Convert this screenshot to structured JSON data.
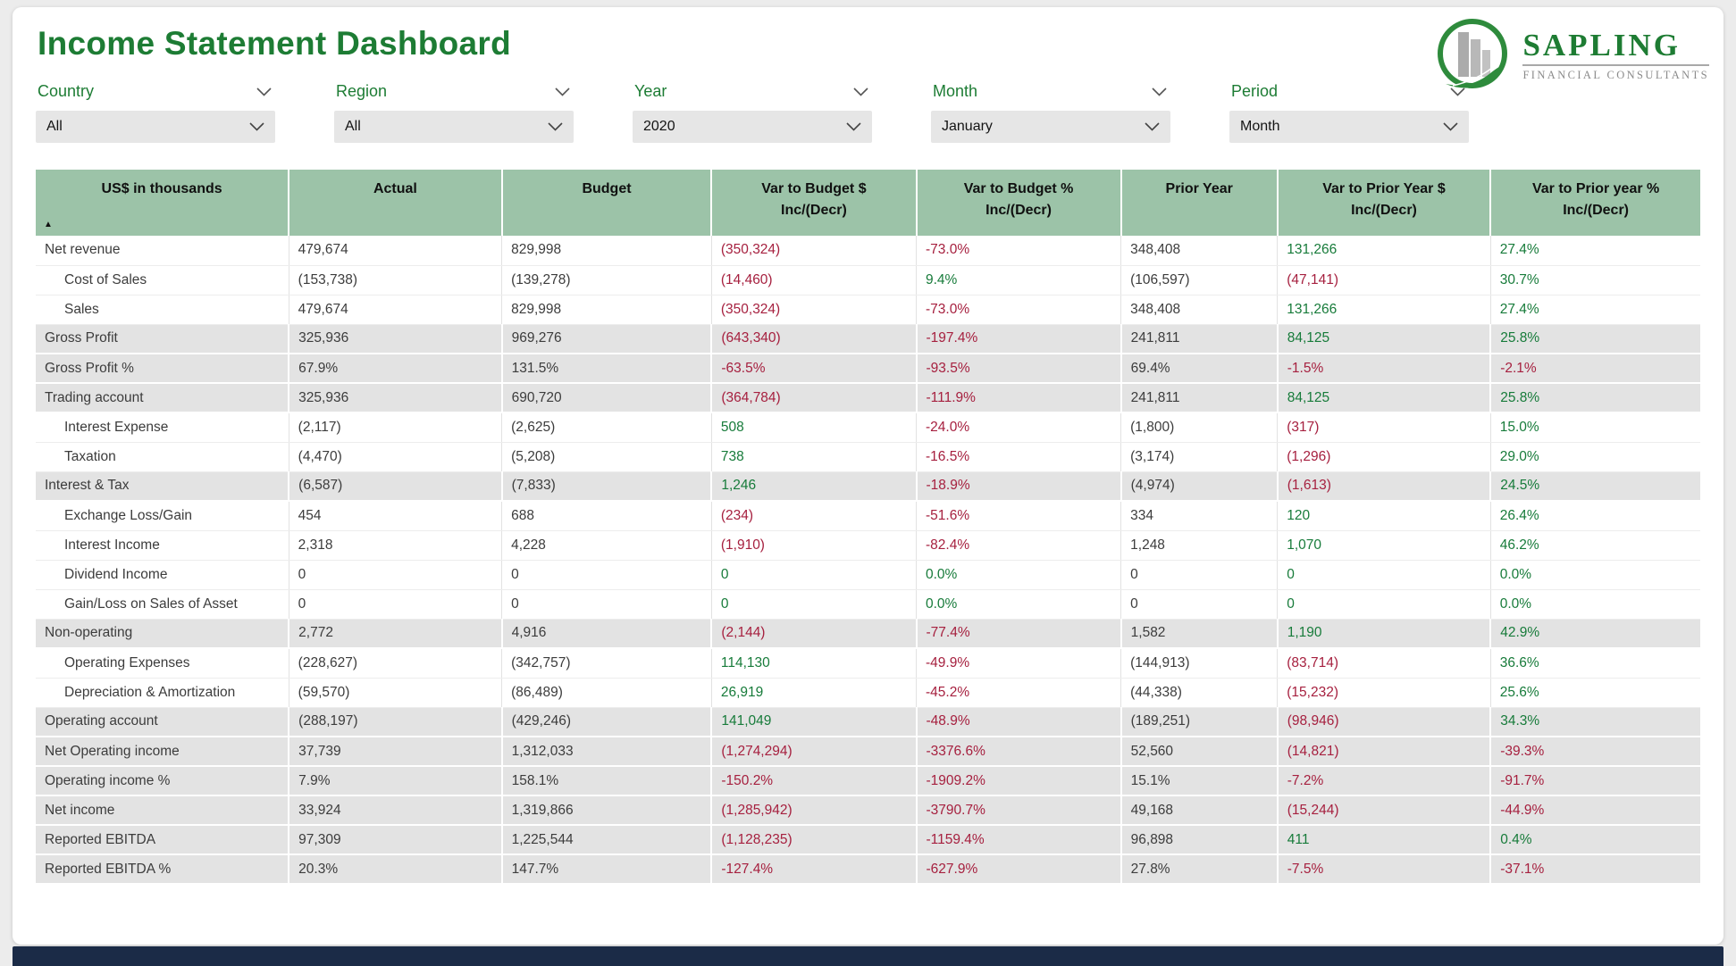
{
  "title": "Income Statement Dashboard",
  "logo": {
    "name": "SAPLING",
    "subtitle": "FINANCIAL CONSULTANTS"
  },
  "filters": [
    {
      "label": "Country",
      "value": "All"
    },
    {
      "label": "Region",
      "value": "All"
    },
    {
      "label": "Year",
      "value": "2020"
    },
    {
      "label": "Month",
      "value": "January"
    },
    {
      "label": "Period",
      "value": "Month"
    }
  ],
  "colors": {
    "accent_green": "#1d7c34",
    "header_bg": "#9cc3a8",
    "positive": "#177b3a",
    "negative": "#a6203f",
    "band_row_bg": "#e3e3e3",
    "bottom_bar": "#1b2b47"
  },
  "table": {
    "sort_icon": "ascending-triangle",
    "columns": [
      [
        "US$ in thousands"
      ],
      [
        "Actual"
      ],
      [
        "Budget"
      ],
      [
        "Var to Budget $",
        "Inc/(Decr)"
      ],
      [
        "Var to Budget %",
        "Inc/(Decr)"
      ],
      [
        "Prior Year"
      ],
      [
        "Var to Prior Year $",
        "Inc/(Decr)"
      ],
      [
        "Var to Prior year %",
        "Inc/(Decr)"
      ]
    ],
    "rows": [
      {
        "label": "Net revenue",
        "indent": false,
        "band": false,
        "cells": [
          [
            "479,674",
            "d"
          ],
          [
            "829,998",
            "d"
          ],
          [
            "(350,324)",
            "n"
          ],
          [
            "-73.0%",
            "n"
          ],
          [
            "348,408",
            "d"
          ],
          [
            "131,266",
            "p"
          ],
          [
            "27.4%",
            "p"
          ]
        ]
      },
      {
        "label": "Cost of Sales",
        "indent": true,
        "band": false,
        "cells": [
          [
            "(153,738)",
            "d"
          ],
          [
            "(139,278)",
            "d"
          ],
          [
            "(14,460)",
            "n"
          ],
          [
            "9.4%",
            "p"
          ],
          [
            "(106,597)",
            "d"
          ],
          [
            "(47,141)",
            "n"
          ],
          [
            "30.7%",
            "p"
          ]
        ]
      },
      {
        "label": "Sales",
        "indent": true,
        "band": false,
        "cells": [
          [
            "479,674",
            "d"
          ],
          [
            "829,998",
            "d"
          ],
          [
            "(350,324)",
            "n"
          ],
          [
            "-73.0%",
            "n"
          ],
          [
            "348,408",
            "d"
          ],
          [
            "131,266",
            "p"
          ],
          [
            "27.4%",
            "p"
          ]
        ]
      },
      {
        "label": "Gross Profit",
        "indent": false,
        "band": true,
        "cells": [
          [
            "325,936",
            "d"
          ],
          [
            "969,276",
            "d"
          ],
          [
            "(643,340)",
            "n"
          ],
          [
            "-197.4%",
            "n"
          ],
          [
            "241,811",
            "d"
          ],
          [
            "84,125",
            "p"
          ],
          [
            "25.8%",
            "p"
          ]
        ]
      },
      {
        "label": "Gross Profit %",
        "indent": false,
        "band": true,
        "cells": [
          [
            "67.9%",
            "d"
          ],
          [
            "131.5%",
            "d"
          ],
          [
            "-63.5%",
            "n"
          ],
          [
            "-93.5%",
            "n"
          ],
          [
            "69.4%",
            "d"
          ],
          [
            "-1.5%",
            "n"
          ],
          [
            "-2.1%",
            "n"
          ]
        ]
      },
      {
        "label": "Trading account",
        "indent": false,
        "band": true,
        "cells": [
          [
            "325,936",
            "d"
          ],
          [
            "690,720",
            "d"
          ],
          [
            "(364,784)",
            "n"
          ],
          [
            "-111.9%",
            "n"
          ],
          [
            "241,811",
            "d"
          ],
          [
            "84,125",
            "p"
          ],
          [
            "25.8%",
            "p"
          ]
        ]
      },
      {
        "label": "Interest Expense",
        "indent": true,
        "band": false,
        "cells": [
          [
            "(2,117)",
            "d"
          ],
          [
            "(2,625)",
            "d"
          ],
          [
            "508",
            "p"
          ],
          [
            "-24.0%",
            "n"
          ],
          [
            "(1,800)",
            "d"
          ],
          [
            "(317)",
            "n"
          ],
          [
            "15.0%",
            "p"
          ]
        ]
      },
      {
        "label": "Taxation",
        "indent": true,
        "band": false,
        "cells": [
          [
            "(4,470)",
            "d"
          ],
          [
            "(5,208)",
            "d"
          ],
          [
            "738",
            "p"
          ],
          [
            "-16.5%",
            "n"
          ],
          [
            "(3,174)",
            "d"
          ],
          [
            "(1,296)",
            "n"
          ],
          [
            "29.0%",
            "p"
          ]
        ]
      },
      {
        "label": "Interest & Tax",
        "indent": false,
        "band": true,
        "cells": [
          [
            "(6,587)",
            "d"
          ],
          [
            "(7,833)",
            "d"
          ],
          [
            "1,246",
            "p"
          ],
          [
            "-18.9%",
            "n"
          ],
          [
            "(4,974)",
            "d"
          ],
          [
            "(1,613)",
            "n"
          ],
          [
            "24.5%",
            "p"
          ]
        ]
      },
      {
        "label": "Exchange Loss/Gain",
        "indent": true,
        "band": false,
        "cells": [
          [
            "454",
            "d"
          ],
          [
            "688",
            "d"
          ],
          [
            "(234)",
            "n"
          ],
          [
            "-51.6%",
            "n"
          ],
          [
            "334",
            "d"
          ],
          [
            "120",
            "p"
          ],
          [
            "26.4%",
            "p"
          ]
        ]
      },
      {
        "label": "Interest Income",
        "indent": true,
        "band": false,
        "cells": [
          [
            "2,318",
            "d"
          ],
          [
            "4,228",
            "d"
          ],
          [
            "(1,910)",
            "n"
          ],
          [
            "-82.4%",
            "n"
          ],
          [
            "1,248",
            "d"
          ],
          [
            "1,070",
            "p"
          ],
          [
            "46.2%",
            "p"
          ]
        ]
      },
      {
        "label": "Dividend Income",
        "indent": true,
        "band": false,
        "cells": [
          [
            "0",
            "d"
          ],
          [
            "0",
            "d"
          ],
          [
            "0",
            "p"
          ],
          [
            "0.0%",
            "p"
          ],
          [
            "0",
            "d"
          ],
          [
            "0",
            "p"
          ],
          [
            "0.0%",
            "p"
          ]
        ]
      },
      {
        "label": "Gain/Loss on Sales of Asset",
        "indent": true,
        "band": false,
        "cells": [
          [
            "0",
            "d"
          ],
          [
            "0",
            "d"
          ],
          [
            "0",
            "p"
          ],
          [
            "0.0%",
            "p"
          ],
          [
            "0",
            "d"
          ],
          [
            "0",
            "p"
          ],
          [
            "0.0%",
            "p"
          ]
        ]
      },
      {
        "label": "Non-operating",
        "indent": false,
        "band": true,
        "cells": [
          [
            "2,772",
            "d"
          ],
          [
            "4,916",
            "d"
          ],
          [
            "(2,144)",
            "n"
          ],
          [
            "-77.4%",
            "n"
          ],
          [
            "1,582",
            "d"
          ],
          [
            "1,190",
            "p"
          ],
          [
            "42.9%",
            "p"
          ]
        ]
      },
      {
        "label": "Operating Expenses",
        "indent": true,
        "band": false,
        "cells": [
          [
            "(228,627)",
            "d"
          ],
          [
            "(342,757)",
            "d"
          ],
          [
            "114,130",
            "p"
          ],
          [
            "-49.9%",
            "n"
          ],
          [
            "(144,913)",
            "d"
          ],
          [
            "(83,714)",
            "n"
          ],
          [
            "36.6%",
            "p"
          ]
        ]
      },
      {
        "label": "Depreciation & Amortization",
        "indent": true,
        "band": false,
        "cells": [
          [
            "(59,570)",
            "d"
          ],
          [
            "(86,489)",
            "d"
          ],
          [
            "26,919",
            "p"
          ],
          [
            "-45.2%",
            "n"
          ],
          [
            "(44,338)",
            "d"
          ],
          [
            "(15,232)",
            "n"
          ],
          [
            "25.6%",
            "p"
          ]
        ]
      },
      {
        "label": "Operating account",
        "indent": false,
        "band": true,
        "cells": [
          [
            "(288,197)",
            "d"
          ],
          [
            "(429,246)",
            "d"
          ],
          [
            "141,049",
            "p"
          ],
          [
            "-48.9%",
            "n"
          ],
          [
            "(189,251)",
            "d"
          ],
          [
            "(98,946)",
            "n"
          ],
          [
            "34.3%",
            "p"
          ]
        ]
      },
      {
        "label": "Net Operating income",
        "indent": false,
        "band": true,
        "cells": [
          [
            "37,739",
            "d"
          ],
          [
            "1,312,033",
            "d"
          ],
          [
            "(1,274,294)",
            "n"
          ],
          [
            "-3376.6%",
            "n"
          ],
          [
            "52,560",
            "d"
          ],
          [
            "(14,821)",
            "n"
          ],
          [
            "-39.3%",
            "n"
          ]
        ]
      },
      {
        "label": "Operating income %",
        "indent": false,
        "band": true,
        "cells": [
          [
            "7.9%",
            "d"
          ],
          [
            "158.1%",
            "d"
          ],
          [
            "-150.2%",
            "n"
          ],
          [
            "-1909.2%",
            "n"
          ],
          [
            "15.1%",
            "d"
          ],
          [
            "-7.2%",
            "n"
          ],
          [
            "-91.7%",
            "n"
          ]
        ]
      },
      {
        "label": "Net income",
        "indent": false,
        "band": true,
        "cells": [
          [
            "33,924",
            "d"
          ],
          [
            "1,319,866",
            "d"
          ],
          [
            "(1,285,942)",
            "n"
          ],
          [
            "-3790.7%",
            "n"
          ],
          [
            "49,168",
            "d"
          ],
          [
            "(15,244)",
            "n"
          ],
          [
            "-44.9%",
            "n"
          ]
        ]
      },
      {
        "label": "Reported EBITDA",
        "indent": false,
        "band": true,
        "cells": [
          [
            "97,309",
            "d"
          ],
          [
            "1,225,544",
            "d"
          ],
          [
            "(1,128,235)",
            "n"
          ],
          [
            "-1159.4%",
            "n"
          ],
          [
            "96,898",
            "d"
          ],
          [
            "411",
            "p"
          ],
          [
            "0.4%",
            "p"
          ]
        ]
      },
      {
        "label": "Reported EBITDA %",
        "indent": false,
        "band": true,
        "cells": [
          [
            "20.3%",
            "d"
          ],
          [
            "147.7%",
            "d"
          ],
          [
            "-127.4%",
            "n"
          ],
          [
            "-627.9%",
            "n"
          ],
          [
            "27.8%",
            "d"
          ],
          [
            "-7.5%",
            "n"
          ],
          [
            "-37.1%",
            "n"
          ]
        ]
      }
    ]
  }
}
